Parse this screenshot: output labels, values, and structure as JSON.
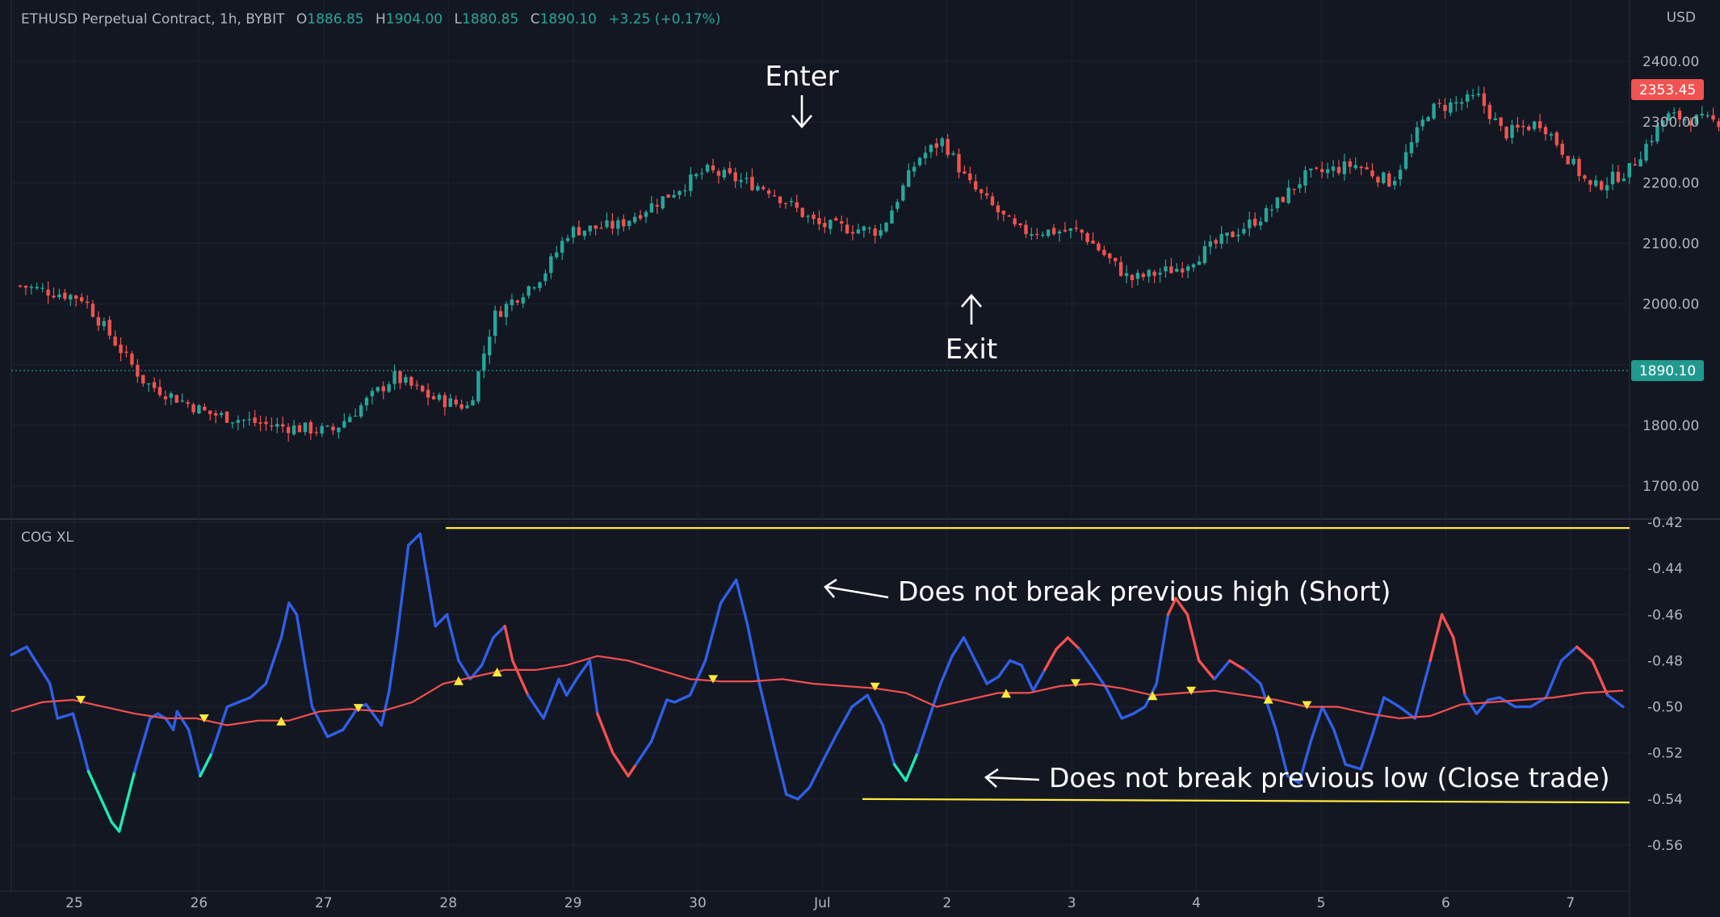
{
  "header": {
    "symbol": "ETHUSD Perpetual Contract, 1h, BYBIT",
    "open_key": "O",
    "open": "1886.85",
    "high_key": "H",
    "high": "1904.00",
    "low_key": "L",
    "low": "1880.85",
    "close_key": "C",
    "close": "1890.10",
    "change": "+3.25 (+0.17%)"
  },
  "price_axis_currency": "USD",
  "indicator_name": "COG XL",
  "annotations": {
    "enter": "Enter",
    "exit": "Exit",
    "high_note": "Does not break previous high (Short)",
    "low_note": "Does not break previous low (Close trade)"
  },
  "colors": {
    "background": "#131722",
    "grid": "#1f2330",
    "up": "#26a69a",
    "down": "#ef5350",
    "cog_line": "#2962ff",
    "cog_line_bright": "#2f5fe8",
    "cog_low_zone": "#1de9b6",
    "signal_line": "#f44f4f",
    "yellow": "#ffeb3b",
    "text": "#b2b5be",
    "last_price_tag": "#f05350",
    "current_price_tag": "#22998f"
  },
  "chart_data": [
    {
      "type": "candlestick",
      "title": "ETHUSD Perpetual Contract, 1h, BYBIT",
      "x_tick_labels": [
        "25",
        "26",
        "27",
        "28",
        "29",
        "30",
        "Jul",
        "2",
        "3",
        "4",
        "5",
        "6",
        "7"
      ],
      "y_ticks": [
        1700,
        1800,
        2000,
        2100,
        2200,
        2300,
        2400
      ],
      "y_tick_labels": [
        "1700.00",
        "1800.00",
        "2000.00",
        "2100.00",
        "2200.00",
        "2300.00",
        "2400.00"
      ],
      "ylim": [
        1650,
        2420
      ],
      "last_price_label": "2353.45",
      "current_price_label": "1890.10",
      "current_price": 1890.1,
      "grid": true,
      "approx_close_path": [
        [
          0,
          2030
        ],
        [
          0.5,
          2010
        ],
        [
          1,
          1870
        ],
        [
          1.5,
          1820
        ],
        [
          2,
          1800
        ],
        [
          2.5,
          1790
        ],
        [
          3,
          1880
        ],
        [
          3.3,
          1845
        ],
        [
          3.6,
          1830
        ],
        [
          3.8,
          1980
        ],
        [
          4.2,
          2050
        ],
        [
          4.4,
          2120
        ],
        [
          4.8,
          2130
        ],
        [
          5.2,
          2180
        ],
        [
          5.5,
          2220
        ],
        [
          6,
          2190
        ],
        [
          6.4,
          2130
        ],
        [
          6.9,
          2120
        ],
        [
          7.2,
          2240
        ],
        [
          7.4,
          2270
        ],
        [
          7.6,
          2200
        ],
        [
          8,
          2120
        ],
        [
          8.5,
          2120
        ],
        [
          8.9,
          2040
        ],
        [
          9.3,
          2060
        ],
        [
          9.6,
          2100
        ],
        [
          10,
          2150
        ],
        [
          10.3,
          2210
        ],
        [
          10.7,
          2230
        ],
        [
          11,
          2200
        ],
        [
          11.3,
          2320
        ],
        [
          11.7,
          2340
        ],
        [
          11.9,
          2280
        ],
        [
          12.2,
          2300
        ],
        [
          12.6,
          2190
        ],
        [
          12.9,
          2220
        ],
        [
          13.2,
          2310
        ],
        [
          13.6,
          2300
        ],
        [
          14,
          2320
        ],
        [
          14.2,
          2380
        ],
        [
          14.5,
          2370
        ]
      ]
    },
    {
      "type": "line",
      "title": "COG XL",
      "y_ticks": [
        -0.42,
        -0.44,
        -0.46,
        -0.48,
        -0.5,
        -0.52,
        -0.54,
        -0.56
      ],
      "y_tick_labels": [
        "-0.42",
        "-0.44",
        "-0.46",
        "-0.48",
        "-0.50",
        "-0.52",
        "-0.54",
        "-0.56"
      ],
      "ylim": [
        -0.57,
        -0.42
      ],
      "series": [
        {
          "color": "blue / red / green by trend",
          "points": [
            [
              0,
              -0.4775
            ],
            [
              0.2,
              -0.474
            ],
            [
              0.5,
              -0.49
            ],
            [
              0.6,
              -0.505
            ],
            [
              0.8,
              -0.503
            ],
            [
              0.9,
              -0.515
            ],
            [
              1,
              -0.528
            ],
            [
              1.3,
              -0.55
            ],
            [
              1.4,
              -0.554
            ],
            [
              1.6,
              -0.528
            ],
            [
              1.8,
              -0.505
            ],
            [
              1.9,
              -0.503
            ],
            [
              2.0,
              -0.505
            ],
            [
              2.1,
              -0.51
            ],
            [
              2.15,
              -0.502
            ],
            [
              2.3,
              -0.51
            ],
            [
              2.45,
              -0.53
            ],
            [
              2.6,
              -0.52
            ],
            [
              2.8,
              -0.5
            ],
            [
              3.1,
              -0.496
            ],
            [
              3.3,
              -0.49
            ],
            [
              3.5,
              -0.47
            ],
            [
              3.6,
              -0.455
            ],
            [
              3.7,
              -0.46
            ],
            [
              3.9,
              -0.5
            ],
            [
              4.1,
              -0.513
            ],
            [
              4.3,
              -0.51
            ],
            [
              4.5,
              -0.5
            ],
            [
              4.6,
              -0.499
            ],
            [
              4.8,
              -0.508
            ],
            [
              4.9,
              -0.493
            ],
            [
              5.0,
              -0.47
            ],
            [
              5.15,
              -0.43
            ],
            [
              5.3,
              -0.425
            ],
            [
              5.5,
              -0.465
            ],
            [
              5.65,
              -0.46
            ],
            [
              5.8,
              -0.48
            ],
            [
              5.95,
              -0.488
            ],
            [
              6.1,
              -0.482
            ],
            [
              6.25,
              -0.47
            ],
            [
              6.4,
              -0.465
            ],
            [
              6.5,
              -0.48
            ],
            [
              6.7,
              -0.495
            ],
            [
              6.9,
              -0.505
            ],
            [
              7.1,
              -0.488
            ],
            [
              7.2,
              -0.495
            ],
            [
              7.35,
              -0.487
            ],
            [
              7.5,
              -0.48
            ],
            [
              7.6,
              -0.503
            ],
            [
              7.8,
              -0.52
            ],
            [
              8.0,
              -0.53
            ],
            [
              8.1,
              -0.525
            ],
            [
              8.3,
              -0.515
            ],
            [
              8.5,
              -0.497
            ],
            [
              8.6,
              -0.498
            ],
            [
              8.8,
              -0.495
            ],
            [
              9.0,
              -0.48
            ],
            [
              9.2,
              -0.455
            ],
            [
              9.4,
              -0.445
            ],
            [
              9.55,
              -0.465
            ],
            [
              9.7,
              -0.49
            ],
            [
              9.9,
              -0.518
            ],
            [
              10.05,
              -0.538
            ],
            [
              10.2,
              -0.54
            ],
            [
              10.35,
              -0.535
            ],
            [
              10.5,
              -0.525
            ],
            [
              10.7,
              -0.512
            ],
            [
              10.9,
              -0.5
            ],
            [
              11.1,
              -0.495
            ],
            [
              11.3,
              -0.508
            ],
            [
              11.45,
              -0.525
            ],
            [
              11.6,
              -0.532
            ],
            [
              11.75,
              -0.52
            ],
            [
              11.9,
              -0.505
            ],
            [
              12.05,
              -0.49
            ],
            [
              12.2,
              -0.478
            ],
            [
              12.35,
              -0.47
            ],
            [
              12.5,
              -0.48
            ],
            [
              12.65,
              -0.49
            ],
            [
              12.8,
              -0.487
            ],
            [
              12.95,
              -0.48
            ],
            [
              13.1,
              -0.482
            ],
            [
              13.25,
              -0.493
            ],
            [
              13.4,
              -0.484
            ],
            [
              13.55,
              -0.475
            ],
            [
              13.7,
              -0.47
            ],
            [
              13.85,
              -0.475
            ],
            [
              14.0,
              -0.482
            ],
            [
              14.2,
              -0.492
            ],
            [
              14.4,
              -0.505
            ],
            [
              14.55,
              -0.503
            ],
            [
              14.7,
              -0.5
            ],
            [
              14.85,
              -0.49
            ],
            [
              15.0,
              -0.46
            ],
            [
              15.1,
              -0.453
            ],
            [
              15.25,
              -0.46
            ],
            [
              15.4,
              -0.48
            ],
            [
              15.6,
              -0.488
            ],
            [
              15.8,
              -0.48
            ],
            [
              16.0,
              -0.484
            ],
            [
              16.2,
              -0.49
            ],
            [
              16.4,
              -0.51
            ],
            [
              16.55,
              -0.53
            ],
            [
              16.7,
              -0.533
            ],
            [
              16.85,
              -0.515
            ],
            [
              17.0,
              -0.5
            ],
            [
              17.15,
              -0.51
            ],
            [
              17.3,
              -0.525
            ],
            [
              17.5,
              -0.527
            ],
            [
              17.65,
              -0.512
            ],
            [
              17.8,
              -0.496
            ],
            [
              18.0,
              -0.5
            ],
            [
              18.2,
              -0.505
            ],
            [
              18.4,
              -0.48
            ],
            [
              18.55,
              -0.46
            ],
            [
              18.7,
              -0.47
            ],
            [
              18.85,
              -0.495
            ],
            [
              19.0,
              -0.503
            ],
            [
              19.15,
              -0.497
            ],
            [
              19.3,
              -0.496
            ],
            [
              19.5,
              -0.5
            ],
            [
              19.7,
              -0.5
            ],
            [
              19.9,
              -0.496
            ],
            [
              20.1,
              -0.48
            ],
            [
              20.3,
              -0.474
            ],
            [
              20.5,
              -0.48
            ],
            [
              20.7,
              -0.495
            ],
            [
              20.9,
              -0.5
            ]
          ]
        },
        {
          "color": "red",
          "points": [
            [
              0,
              -0.502
            ],
            [
              0.4,
              -0.498
            ],
            [
              0.8,
              -0.497
            ],
            [
              1.2,
              -0.5
            ],
            [
              1.6,
              -0.503
            ],
            [
              2,
              -0.505
            ],
            [
              2.4,
              -0.505
            ],
            [
              2.8,
              -0.508
            ],
            [
              3.2,
              -0.506
            ],
            [
              3.6,
              -0.506
            ],
            [
              4.0,
              -0.502
            ],
            [
              4.4,
              -0.501
            ],
            [
              4.8,
              -0.502
            ],
            [
              5.2,
              -0.498
            ],
            [
              5.6,
              -0.49
            ],
            [
              6.0,
              -0.487
            ],
            [
              6.4,
              -0.484
            ],
            [
              6.8,
              -0.484
            ],
            [
              7.2,
              -0.482
            ],
            [
              7.6,
              -0.478
            ],
            [
              8.0,
              -0.48
            ],
            [
              8.4,
              -0.484
            ],
            [
              8.8,
              -0.488
            ],
            [
              9.2,
              -0.489
            ],
            [
              9.6,
              -0.489
            ],
            [
              10.0,
              -0.488
            ],
            [
              10.4,
              -0.49
            ],
            [
              10.8,
              -0.491
            ],
            [
              11.2,
              -0.492
            ],
            [
              11.6,
              -0.494
            ],
            [
              12.0,
              -0.5
            ],
            [
              12.4,
              -0.497
            ],
            [
              12.8,
              -0.494
            ],
            [
              13.2,
              -0.494
            ],
            [
              13.6,
              -0.491
            ],
            [
              14.0,
              -0.49
            ],
            [
              14.4,
              -0.492
            ],
            [
              14.8,
              -0.495
            ],
            [
              15.2,
              -0.494
            ],
            [
              15.6,
              -0.493
            ],
            [
              16.0,
              -0.495
            ],
            [
              16.4,
              -0.497
            ],
            [
              16.8,
              -0.5
            ],
            [
              17.2,
              -0.5
            ],
            [
              17.6,
              -0.503
            ],
            [
              18.0,
              -0.505
            ],
            [
              18.4,
              -0.504
            ],
            [
              18.8,
              -0.499
            ],
            [
              19.2,
              -0.498
            ],
            [
              19.6,
              -0.497
            ],
            [
              20.0,
              -0.496
            ],
            [
              20.4,
              -0.494
            ],
            [
              20.9,
              -0.493
            ]
          ]
        }
      ],
      "reference_lines": [
        {
          "label": "previous high",
          "y_start": -0.4225,
          "y_end": -0.4225
        },
        {
          "label": "previous low",
          "y_start": -0.54,
          "y_end": -0.5415
        }
      ],
      "signal_markers": {
        "down": [
          0.9,
          2.5,
          4.5,
          9.1,
          11.2,
          13.8,
          15.3,
          16.8
        ],
        "up": [
          3.5,
          5.8,
          6.3,
          12.9,
          14.8,
          16.3
        ]
      }
    }
  ]
}
